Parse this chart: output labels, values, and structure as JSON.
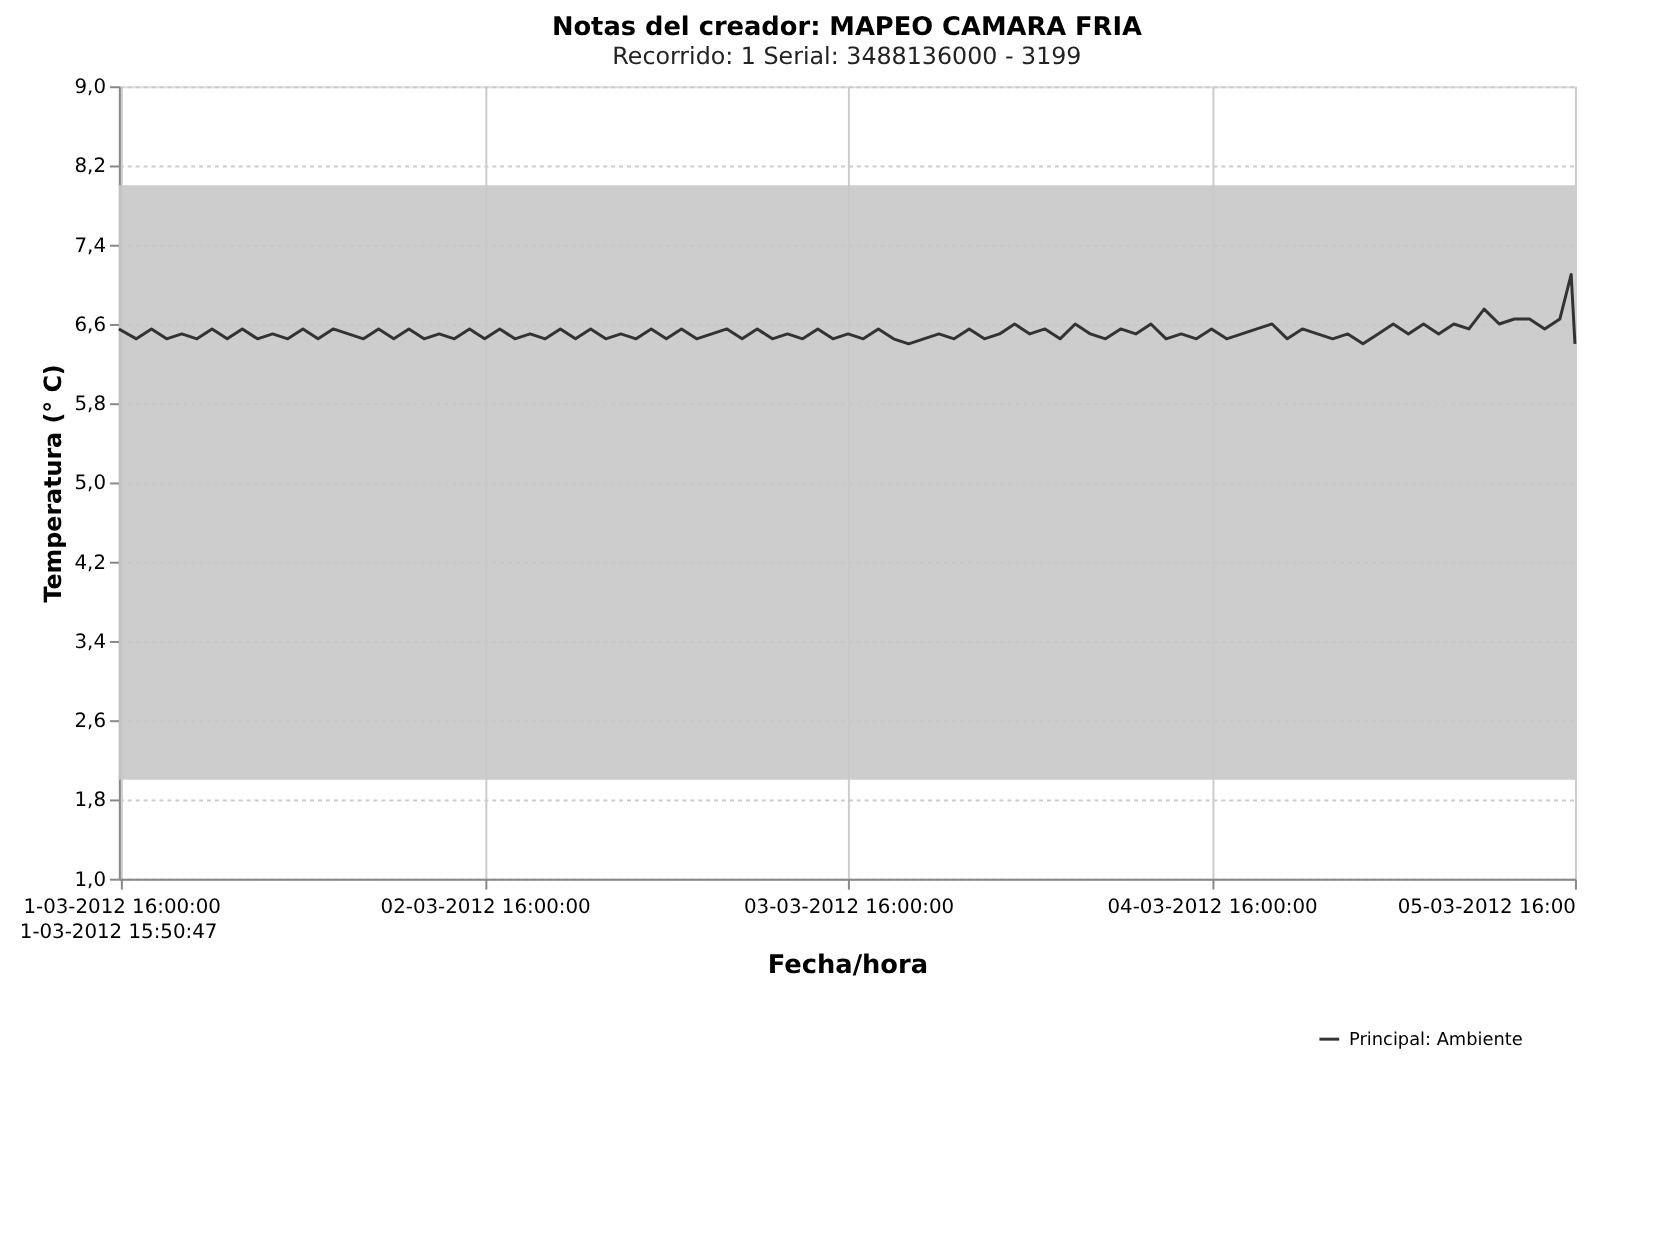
{
  "chart_data": {
    "type": "line",
    "title": "Notas del creador: MAPEO CAMARA FRIA",
    "subtitle": "Recorrido: 1   Serial: 3488136000 - 3199",
    "xlabel": "Fecha/hora",
    "ylabel": "Temperatura (° C)",
    "xlim": [
      "2012-03-01T15:50:47",
      "2012-03-05T16:00"
    ],
    "annotations": [
      "1-03-2012 15:50:47"
    ],
    "xticks": [
      {
        "value": "2012-03-01T16:00",
        "label": "1-03-2012 16:00:00"
      },
      {
        "value": "2012-03-02T16:00",
        "label": "02-03-2012 16:00:00"
      },
      {
        "value": "2012-03-03T16:00",
        "label": "03-03-2012 16:00:00"
      },
      {
        "value": "2012-03-04T16:00",
        "label": "04-03-2012 16:00:00"
      },
      {
        "value": "2012-03-05T16:00",
        "label": "05-03-2012 16:00"
      }
    ],
    "ylim": [
      1.0,
      9.0
    ],
    "yticks": [
      {
        "value": 1.0,
        "label": "1,0"
      },
      {
        "value": 1.8,
        "label": "1,8"
      },
      {
        "value": 2.6,
        "label": "2,6"
      },
      {
        "value": 3.4,
        "label": "3,4"
      },
      {
        "value": 4.2,
        "label": "4,2"
      },
      {
        "value": 5.0,
        "label": "5,0"
      },
      {
        "value": 5.8,
        "label": "5,8"
      },
      {
        "value": 6.6,
        "label": "6,6"
      },
      {
        "value": 7.4,
        "label": "7,4"
      },
      {
        "value": 8.2,
        "label": "8,2"
      },
      {
        "value": 9.0,
        "label": "9,0"
      }
    ],
    "bands": [
      {
        "axis": "y",
        "from": 2.0,
        "to": 8.0,
        "color": "#c8c8c8"
      }
    ],
    "grid": true,
    "legend": "bottom right",
    "marker": "none",
    "line_style": "solid",
    "x": [
      "2012-03-01T15:50:47",
      "2012-03-01T17:00",
      "2012-03-01T18:00",
      "2012-03-01T19:00",
      "2012-03-01T20:00",
      "2012-03-01T21:00",
      "2012-03-01T22:00",
      "2012-03-01T23:00",
      "2012-03-02T00:00",
      "2012-03-02T01:00",
      "2012-03-02T02:00",
      "2012-03-02T03:00",
      "2012-03-02T04:00",
      "2012-03-02T05:00",
      "2012-03-02T06:00",
      "2012-03-02T07:00",
      "2012-03-02T08:00",
      "2012-03-02T09:00",
      "2012-03-02T10:00",
      "2012-03-02T11:00",
      "2012-03-02T12:00",
      "2012-03-02T13:00",
      "2012-03-02T14:00",
      "2012-03-02T15:00",
      "2012-03-02T16:00",
      "2012-03-02T17:00",
      "2012-03-02T18:00",
      "2012-03-02T19:00",
      "2012-03-02T20:00",
      "2012-03-02T21:00",
      "2012-03-02T22:00",
      "2012-03-02T23:00",
      "2012-03-03T00:00",
      "2012-03-03T01:00",
      "2012-03-03T02:00",
      "2012-03-03T03:00",
      "2012-03-03T04:00",
      "2012-03-03T05:00",
      "2012-03-03T06:00",
      "2012-03-03T07:00",
      "2012-03-03T08:00",
      "2012-03-03T09:00",
      "2012-03-03T10:00",
      "2012-03-03T11:00",
      "2012-03-03T12:00",
      "2012-03-03T13:00",
      "2012-03-03T14:00",
      "2012-03-03T15:00",
      "2012-03-03T16:00",
      "2012-03-03T17:00",
      "2012-03-03T18:00",
      "2012-03-03T19:00",
      "2012-03-03T20:00",
      "2012-03-03T21:00",
      "2012-03-03T22:00",
      "2012-03-03T23:00",
      "2012-03-04T00:00",
      "2012-03-04T01:00",
      "2012-03-04T02:00",
      "2012-03-04T03:00",
      "2012-03-04T04:00",
      "2012-03-04T05:00",
      "2012-03-04T06:00",
      "2012-03-04T07:00",
      "2012-03-04T08:00",
      "2012-03-04T09:00",
      "2012-03-04T10:00",
      "2012-03-04T11:00",
      "2012-03-04T12:00",
      "2012-03-04T13:00",
      "2012-03-04T14:00",
      "2012-03-04T15:00",
      "2012-03-04T16:00",
      "2012-03-04T17:00",
      "2012-03-04T18:00",
      "2012-03-04T19:00",
      "2012-03-04T20:00",
      "2012-03-04T21:00",
      "2012-03-04T22:00",
      "2012-03-04T23:00",
      "2012-03-05T00:00",
      "2012-03-05T01:00",
      "2012-03-05T02:00",
      "2012-03-05T03:00",
      "2012-03-05T04:00",
      "2012-03-05T05:00",
      "2012-03-05T06:00",
      "2012-03-05T07:00",
      "2012-03-05T08:00",
      "2012-03-05T09:00",
      "2012-03-05T10:00",
      "2012-03-05T11:00",
      "2012-03-05T12:00",
      "2012-03-05T13:00",
      "2012-03-05T14:00",
      "2012-03-05T15:00",
      "2012-03-05T15:45",
      "2012-03-05T16:00"
    ],
    "series": [
      {
        "name": "Principal: Ambiente",
        "color": "#333333",
        "values": [
          6.55,
          6.45,
          6.55,
          6.45,
          6.5,
          6.45,
          6.55,
          6.45,
          6.55,
          6.45,
          6.5,
          6.45,
          6.55,
          6.45,
          6.55,
          6.5,
          6.45,
          6.55,
          6.45,
          6.55,
          6.45,
          6.5,
          6.45,
          6.55,
          6.45,
          6.55,
          6.45,
          6.5,
          6.45,
          6.55,
          6.45,
          6.55,
          6.45,
          6.5,
          6.45,
          6.55,
          6.45,
          6.55,
          6.45,
          6.5,
          6.55,
          6.45,
          6.55,
          6.45,
          6.5,
          6.45,
          6.55,
          6.45,
          6.5,
          6.45,
          6.55,
          6.45,
          6.4,
          6.45,
          6.5,
          6.45,
          6.55,
          6.45,
          6.5,
          6.6,
          6.5,
          6.55,
          6.45,
          6.6,
          6.5,
          6.45,
          6.55,
          6.5,
          6.6,
          6.45,
          6.5,
          6.45,
          6.55,
          6.45,
          6.5,
          6.55,
          6.6,
          6.45,
          6.55,
          6.5,
          6.45,
          6.5,
          6.4,
          6.5,
          6.6,
          6.5,
          6.6,
          6.5,
          6.6,
          6.55,
          6.75,
          6.6,
          6.65,
          6.65,
          6.55,
          6.65,
          7.1,
          6.4
        ]
      }
    ]
  }
}
